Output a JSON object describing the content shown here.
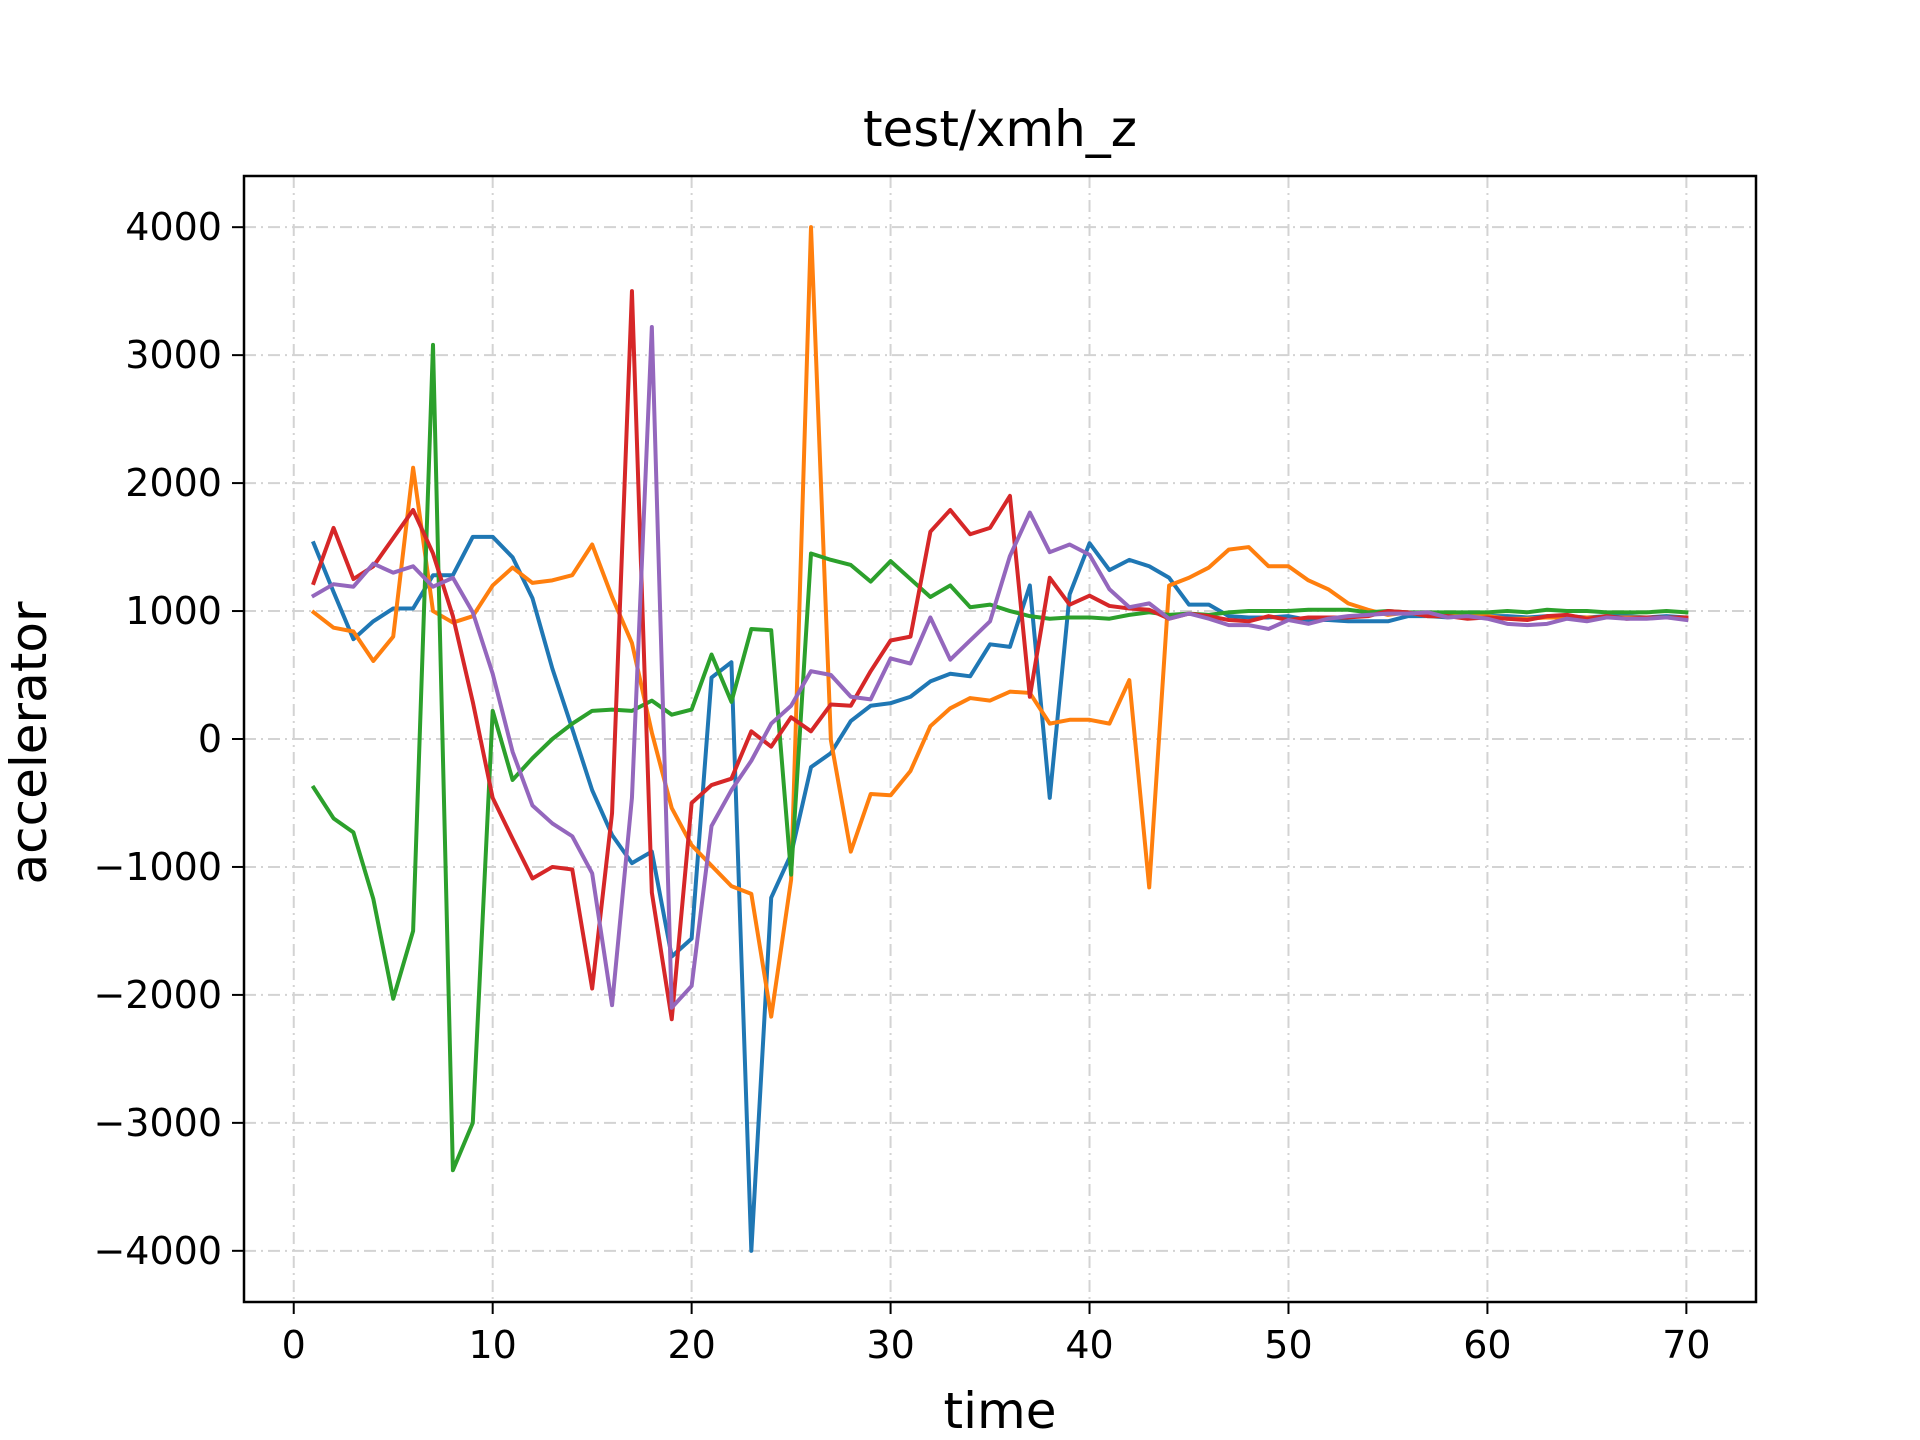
{
  "chart_data": {
    "type": "line",
    "title": "test/xmh_z",
    "xlabel": "time",
    "ylabel": "accelerator",
    "xlim": [
      -2.5,
      73.5
    ],
    "ylim": [
      -4400,
      4400
    ],
    "xticks": [
      0,
      10,
      20,
      30,
      40,
      50,
      60,
      70
    ],
    "yticks": [
      -4000,
      -3000,
      -2000,
      -1000,
      0,
      1000,
      2000,
      3000,
      4000
    ],
    "ytick_labels": [
      "−4000",
      "−3000",
      "−2000",
      "−1000",
      "0",
      "1000",
      "2000",
      "3000",
      "4000"
    ],
    "grid": true,
    "grid_style": "dashdot",
    "legend": false,
    "x": [
      1,
      2,
      3,
      4,
      5,
      6,
      7,
      8,
      9,
      10,
      11,
      12,
      13,
      14,
      15,
      16,
      17,
      18,
      19,
      20,
      21,
      22,
      23,
      24,
      25,
      26,
      27,
      28,
      29,
      30,
      31,
      32,
      33,
      34,
      35,
      36,
      37,
      38,
      39,
      40,
      41,
      42,
      43,
      44,
      45,
      46,
      47,
      48,
      49,
      50,
      51,
      52,
      53,
      54,
      55,
      56,
      57,
      58,
      59,
      60,
      61,
      62,
      63,
      64,
      65,
      66,
      67,
      68,
      69,
      70
    ],
    "series": [
      {
        "color": "#1f77b4",
        "values": [
          1530,
          1150,
          780,
          920,
          1020,
          1020,
          1280,
          1280,
          1580,
          1580,
          1420,
          1100,
          550,
          80,
          -400,
          -750,
          -970,
          -880,
          -1700,
          -1560,
          480,
          600,
          -4000,
          -1240,
          -900,
          -220,
          -110,
          140,
          260,
          280,
          330,
          450,
          510,
          490,
          740,
          720,
          1200,
          -460,
          1130,
          1530,
          1320,
          1400,
          1350,
          1260,
          1050,
          1050,
          960,
          950,
          950,
          960,
          930,
          930,
          920,
          920,
          920,
          960,
          960,
          950,
          960,
          960,
          960,
          950,
          960,
          960,
          950,
          960,
          960,
          950,
          960,
          950
        ]
      },
      {
        "color": "#ff7f0e",
        "values": [
          990,
          870,
          840,
          610,
          800,
          2120,
          1000,
          910,
          960,
          1200,
          1340,
          1220,
          1240,
          1280,
          1520,
          1110,
          750,
          50,
          -540,
          -830,
          -990,
          -1150,
          -1210,
          -2170,
          -1100,
          4000,
          -10,
          -880,
          -430,
          -440,
          -250,
          100,
          240,
          320,
          300,
          370,
          360,
          120,
          150,
          150,
          120,
          460,
          -1160,
          1200,
          1260,
          1340,
          1480,
          1500,
          1350,
          1350,
          1240,
          1170,
          1060,
          1010,
          970,
          990,
          960,
          960,
          960,
          960,
          940,
          940,
          950,
          950,
          950,
          950,
          950,
          950,
          950,
          940
        ]
      },
      {
        "color": "#2ca02c",
        "values": [
          -380,
          -620,
          -730,
          -1250,
          -2030,
          -1500,
          3080,
          -3370,
          -3000,
          220,
          -320,
          -150,
          0,
          120,
          220,
          230,
          220,
          300,
          190,
          230,
          660,
          290,
          860,
          850,
          -1060,
          1450,
          1400,
          1360,
          1230,
          1390,
          1250,
          1110,
          1200,
          1030,
          1050,
          1000,
          960,
          940,
          950,
          950,
          940,
          970,
          990,
          970,
          980,
          970,
          990,
          1000,
          1000,
          1000,
          1010,
          1010,
          1010,
          990,
          1000,
          990,
          990,
          990,
          990,
          990,
          1000,
          990,
          1010,
          1000,
          1000,
          990,
          990,
          990,
          1000,
          990
        ]
      },
      {
        "color": "#d62728",
        "values": [
          1220,
          1650,
          1250,
          1350,
          1570,
          1790,
          1450,
          960,
          290,
          -460,
          -780,
          -1090,
          -1000,
          -1020,
          -1950,
          -580,
          3500,
          -1200,
          -2190,
          -500,
          -360,
          -310,
          60,
          -60,
          170,
          60,
          270,
          260,
          530,
          770,
          800,
          1620,
          1790,
          1600,
          1650,
          1900,
          330,
          1260,
          1050,
          1120,
          1040,
          1020,
          1010,
          940,
          980,
          960,
          930,
          920,
          960,
          930,
          950,
          950,
          950,
          960,
          1000,
          990,
          960,
          960,
          940,
          950,
          940,
          930,
          960,
          970,
          940,
          960,
          940,
          950,
          950,
          950
        ]
      },
      {
        "color": "#9467bd",
        "values": [
          1120,
          1210,
          1190,
          1370,
          1300,
          1350,
          1190,
          1260,
          990,
          510,
          -100,
          -520,
          -660,
          -760,
          -1050,
          -2080,
          -460,
          3220,
          -2100,
          -1930,
          -680,
          -400,
          -170,
          120,
          260,
          530,
          500,
          330,
          310,
          630,
          590,
          950,
          620,
          770,
          920,
          1430,
          1770,
          1460,
          1520,
          1440,
          1170,
          1030,
          1060,
          940,
          980,
          940,
          890,
          890,
          860,
          930,
          900,
          940,
          960,
          970,
          980,
          980,
          990,
          950,
          960,
          940,
          900,
          890,
          900,
          940,
          920,
          950,
          940,
          940,
          950,
          930
        ]
      }
    ]
  }
}
